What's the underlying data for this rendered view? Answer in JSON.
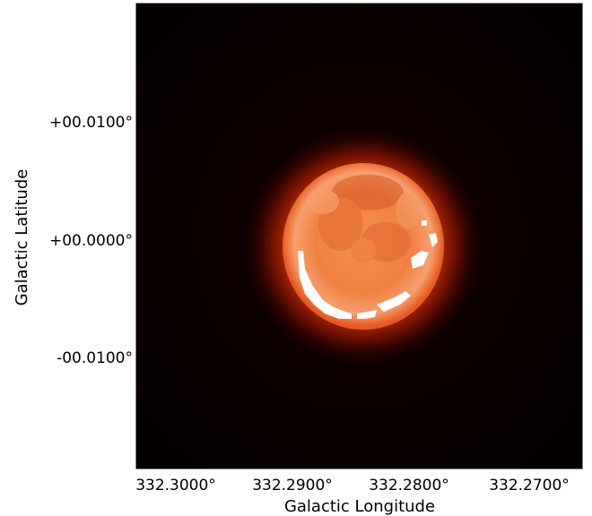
{
  "chart_data": {
    "type": "heatmap",
    "colormap": "hot",
    "xlabel": "Galactic Longitude",
    "ylabel": "Galactic Latitude",
    "x_ticks": [
      {
        "value": 332.3,
        "label": "332.3000°"
      },
      {
        "value": 332.29,
        "label": "332.2900°"
      },
      {
        "value": 332.28,
        "label": "332.2800°"
      },
      {
        "value": 332.27,
        "label": "332.2700°"
      }
    ],
    "y_ticks": [
      {
        "value": 0.01,
        "label": "+00.0100°"
      },
      {
        "value": 0.0,
        "label": "+00.0000°"
      },
      {
        "value": -0.01,
        "label": "-00.0100°"
      }
    ],
    "xlim": [
      332.3045,
      332.2665
    ],
    "ylim": [
      -0.0195,
      0.02
    ],
    "source_center": {
      "l": 332.2845,
      "b": 0.0003
    },
    "source_radius_deg": 0.0066,
    "colors": {
      "background": "#050000",
      "ring_inner": "#f0823e",
      "halo": "#c02000",
      "saturated": "#ffffff"
    }
  }
}
